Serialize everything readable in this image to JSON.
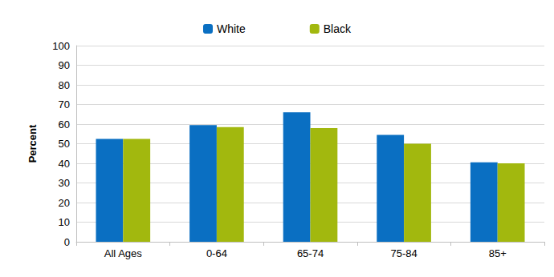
{
  "chart_data": {
    "type": "bar",
    "y_label": "Percent",
    "categories": [
      "All Ages",
      "0-64",
      "65-74",
      "75-84",
      "85+"
    ],
    "series": [
      {
        "name": "White",
        "color": "#0a6fc2",
        "values": [
          52.5,
          59.5,
          66,
          54.5,
          40.5
        ]
      },
      {
        "name": "Black",
        "color": "#a2b80e",
        "values": [
          52.5,
          58.5,
          58,
          50,
          40
        ]
      }
    ],
    "ylim": [
      0,
      100
    ],
    "yticks": [
      0,
      10,
      20,
      30,
      40,
      50,
      60,
      70,
      80,
      90,
      100
    ],
    "grid": true,
    "legend": "top"
  }
}
